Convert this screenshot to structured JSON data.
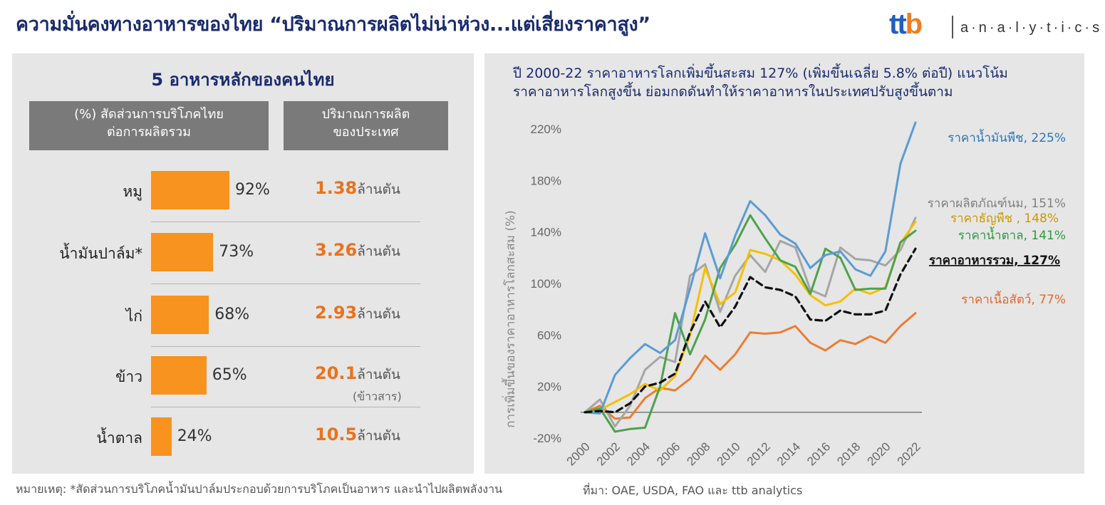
{
  "header": {
    "title": "ความมั่นคงทางอาหารของไทย “ปริมาณการผลิตไม่น่าห่วง...แต่เสี่ยงราคาสูง”",
    "logo_ttb": "ttb",
    "logo_analytics": "a·n·a·l·y·t·i·c·s"
  },
  "left": {
    "title": "5 อาหารหลักของคนไทย",
    "header_share_line1": "(%) สัดส่วนการบริโภคไทย",
    "header_share_line2": "ต่อการผลิตรวม",
    "header_prod_line1": "ปริมาณการผลิต",
    "header_prod_line2": "ของประเทศ",
    "items": [
      {
        "label": "หมู",
        "pct_text": "92%",
        "pct": 92,
        "prod": "1.38",
        "unit": "ล้านตัน",
        "note": ""
      },
      {
        "label": "น้ำมันปาล์ม*",
        "pct_text": "73%",
        "pct": 73,
        "prod": "3.26",
        "unit": "ล้านตัน",
        "note": ""
      },
      {
        "label": "ไก่",
        "pct_text": "68%",
        "pct": 68,
        "prod": "2.93",
        "unit": "ล้านตัน",
        "note": ""
      },
      {
        "label": "ข้าว",
        "pct_text": "65%",
        "pct": 65,
        "prod": "20.1",
        "unit": "ล้านตัน",
        "note": "(ข้าวสาร)"
      },
      {
        "label": "น้ำตาล",
        "pct_text": "24%",
        "pct": 24,
        "prod": "10.5",
        "unit": "ล้านตัน",
        "note": ""
      }
    ]
  },
  "footnote": "หมายเหตุ: *สัดส่วนการบริโภคน้ำมันปาล์มประกอบด้วยการบริโภคเป็นอาหาร และนำไปผลิตพลังงาน",
  "source": "ที่มา: OAE, USDA, FAO และ ttb analytics",
  "right": {
    "title_line1": "ปี 2000-22 ราคาอาหารโลกเพิ่มขึ้นสะสม 127% (เพิ่มขึ้นเฉลี่ย 5.8% ต่อปี) แนวโน้ม",
    "title_line2": "ราคาอาหารโลกสูงขึ้น ย่อมกดดันทำให้ราคาอาหารในประเทศปรับสูงขึ้นตาม"
  },
  "chart_data": {
    "type": "line",
    "ylabel": "การเพิ่มขึ้นของราคาอาหารโลกสะสม (%)",
    "ylim": [
      -20,
      230
    ],
    "yticks": [
      -20,
      20,
      60,
      100,
      140,
      180,
      220
    ],
    "ytick_labels": [
      "-20%",
      "20%",
      "60%",
      "100%",
      "140%",
      "180%",
      "220%"
    ],
    "x": [
      2000,
      2001,
      2002,
      2003,
      2004,
      2005,
      2006,
      2007,
      2008,
      2009,
      2010,
      2011,
      2012,
      2013,
      2014,
      2015,
      2016,
      2017,
      2018,
      2019,
      2020,
      2021,
      2022
    ],
    "xtick_labels": [
      "2000",
      "2002",
      "2004",
      "2006",
      "2008",
      "2010",
      "2012",
      "2014",
      "2016",
      "2018",
      "2020",
      "2022"
    ],
    "series": [
      {
        "name": "ราคาน้ำมันพืช, 225%",
        "color": "#5b9bd5",
        "dashed": false,
        "bold": false,
        "values": [
          0,
          -1,
          29,
          42,
          53,
          46,
          56,
          96,
          139,
          104,
          137,
          164,
          153,
          138,
          131,
          112,
          122,
          125,
          111,
          106,
          125,
          193,
          225
        ]
      },
      {
        "name": "ราคาผลิตภัณฑ์นม, 151%",
        "color": "#a5a5a5",
        "dashed": false,
        "bold": false,
        "values": [
          0,
          10,
          -11,
          5,
          33,
          43,
          39,
          106,
          115,
          78,
          106,
          122,
          109,
          133,
          128,
          95,
          90,
          128,
          119,
          118,
          114,
          126,
          151
        ]
      },
      {
        "name": "ราคาธัญพืช , 148%",
        "color": "#f5c000",
        "dashed": false,
        "bold": false,
        "values": [
          0,
          2,
          8,
          14,
          22,
          17,
          28,
          60,
          112,
          84,
          93,
          126,
          123,
          118,
          107,
          91,
          83,
          86,
          96,
          92,
          97,
          131,
          148
        ]
      },
      {
        "name": "ราคาน้ำตาล, 141%",
        "color": "#4ea24b",
        "dashed": false,
        "bold": false,
        "values": [
          0,
          3,
          -15,
          -13,
          -12,
          20,
          77,
          45,
          72,
          112,
          130,
          153,
          135,
          118,
          113,
          92,
          127,
          120,
          95,
          96,
          96,
          132,
          141
        ]
      },
      {
        "name": "ราคาอาหารรวม, 127%",
        "color": "#111111",
        "dashed": true,
        "bold": true,
        "values": [
          0,
          1,
          0,
          7,
          20,
          23,
          30,
          62,
          86,
          66,
          82,
          105,
          97,
          95,
          90,
          72,
          71,
          79,
          76,
          76,
          79,
          107,
          127
        ]
      },
      {
        "name": "ราคาเนื้อสัตว์, 77%",
        "color": "#ed7d31",
        "dashed": false,
        "bold": false,
        "values": [
          0,
          5,
          -5,
          -4,
          11,
          19,
          17,
          26,
          44,
          33,
          45,
          62,
          61,
          62,
          67,
          54,
          48,
          56,
          53,
          59,
          54,
          67,
          77
        ]
      }
    ]
  }
}
